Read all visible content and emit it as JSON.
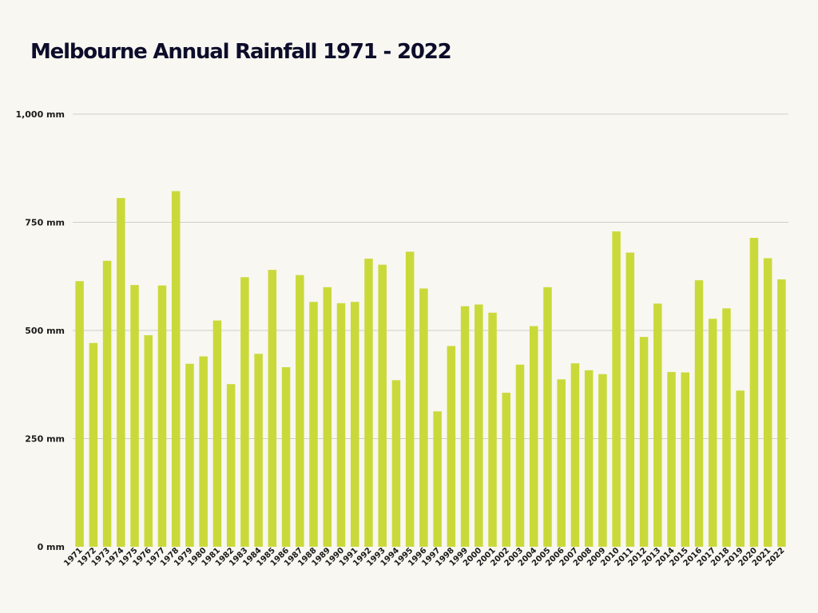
{
  "chart_data": {
    "type": "bar",
    "title": "Melbourne Annual Rainfall 1971 - 2022",
    "xlabel": "",
    "ylabel": "",
    "ylim": [
      0,
      1000
    ],
    "yticks": [
      {
        "value": 0,
        "label": "0 mm"
      },
      {
        "value": 250,
        "label": "250 mm"
      },
      {
        "value": 500,
        "label": "500 mm"
      },
      {
        "value": 750,
        "label": "750 mm"
      },
      {
        "value": 1000,
        "label": "1,000 mm"
      }
    ],
    "grid": true,
    "bar_color": "#cad93a",
    "grid_color": "#cfcfc9",
    "categories": [
      "1971",
      "1972",
      "1973",
      "1974",
      "1975",
      "1976",
      "1977",
      "1978",
      "1979",
      "1980",
      "1981",
      "1982",
      "1983",
      "1984",
      "1985",
      "1986",
      "1987",
      "1988",
      "1989",
      "1990",
      "1991",
      "1992",
      "1993",
      "1994",
      "1995",
      "1996",
      "1997",
      "1998",
      "1999",
      "2000",
      "2001",
      "2002",
      "2003",
      "2004",
      "2005",
      "2006",
      "2007",
      "2008",
      "2009",
      "2010",
      "2011",
      "2012",
      "2013",
      "2014",
      "2015",
      "2016",
      "2017",
      "2018",
      "2019",
      "2020",
      "2021",
      "2022"
    ],
    "values": [
      614,
      471,
      661,
      806,
      605,
      489,
      604,
      822,
      423,
      440,
      523,
      376,
      623,
      446,
      640,
      415,
      628,
      566,
      600,
      563,
      566,
      666,
      652,
      385,
      682,
      597,
      313,
      464,
      556,
      560,
      541,
      356,
      421,
      510,
      600,
      387,
      424,
      408,
      399,
      729,
      680,
      485,
      562,
      404,
      403,
      616,
      527,
      551,
      361,
      714,
      667,
      618
    ]
  }
}
